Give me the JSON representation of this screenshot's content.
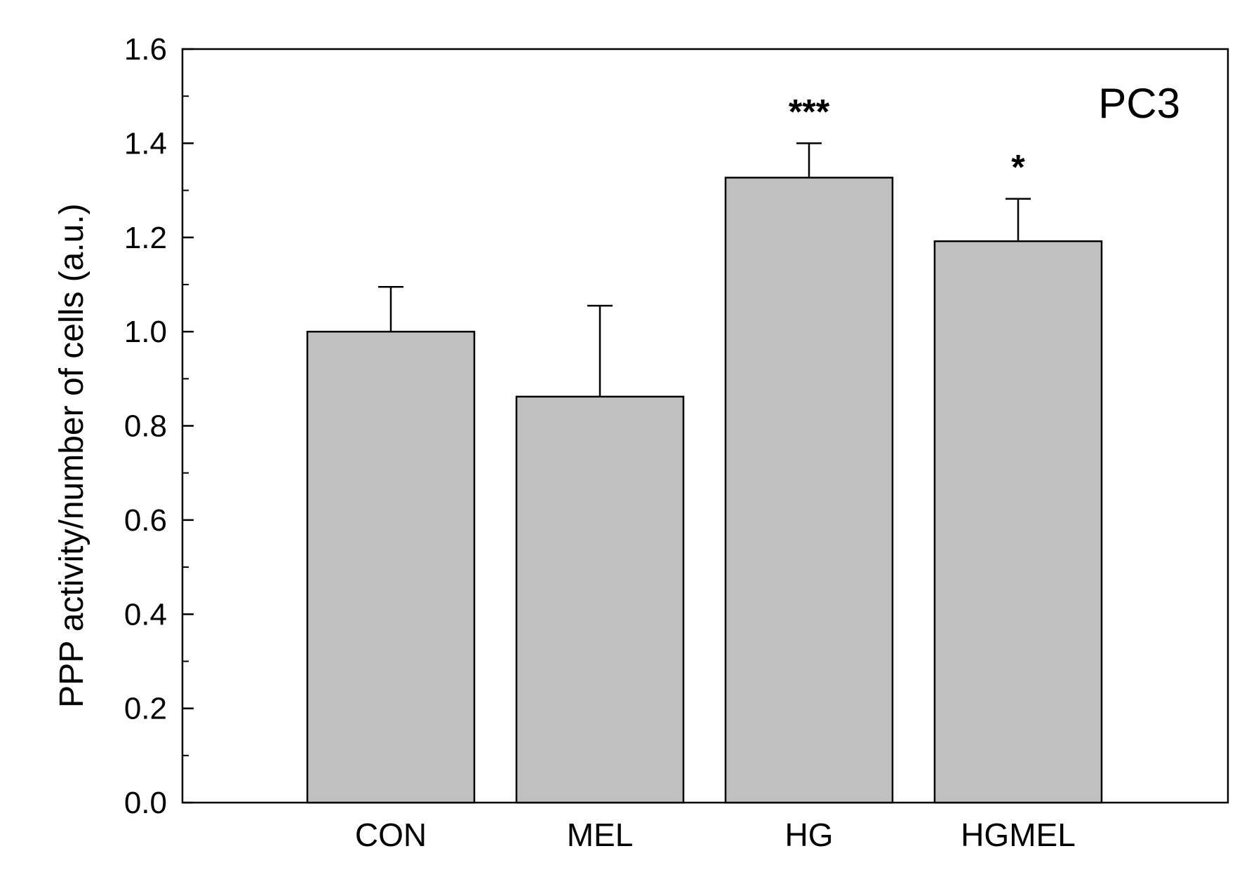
{
  "chart_data": {
    "type": "bar",
    "title": "",
    "panel_label": "PC3",
    "xlabel": "",
    "ylabel": "PPP activity/number of cells (a.u.)",
    "categories": [
      "CON",
      "MEL",
      "HG",
      "HGMEL"
    ],
    "values": [
      1.0,
      0.862,
      1.327,
      1.192
    ],
    "errors": [
      0.095,
      0.193,
      0.073,
      0.09
    ],
    "significance": [
      "",
      "",
      "***",
      "*"
    ],
    "ylim": [
      0,
      1.6
    ],
    "yticks": [
      "0.0",
      "0.2",
      "0.4",
      "0.6",
      "0.8",
      "1.0",
      "1.2",
      "1.4",
      "1.6"
    ],
    "ytick_values": [
      0,
      0.2,
      0.4,
      0.6,
      0.8,
      1.0,
      1.2,
      1.4,
      1.6
    ],
    "grid": false,
    "bar_color": "#c0c0c0",
    "edge_color": "#000000"
  }
}
